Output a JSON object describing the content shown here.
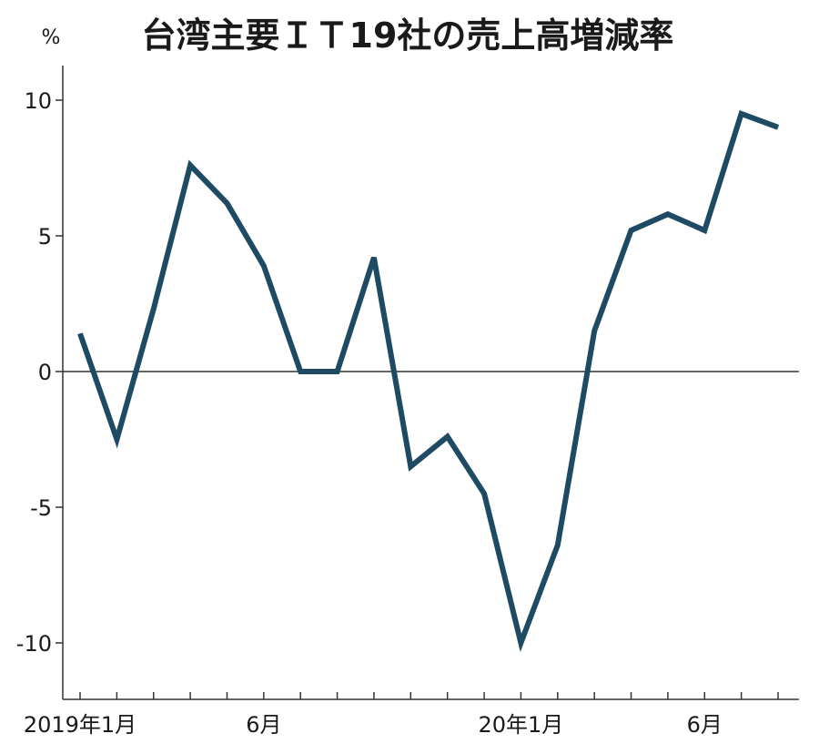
{
  "chart_data": {
    "type": "line",
    "title": "台湾主要ＩＴ19社の売上高増減率",
    "ylabel": "%",
    "xlabel": "",
    "ylim": [
      -12,
      11.2
    ],
    "yticks": [
      10,
      5,
      0,
      -5,
      -10
    ],
    "ytick_labels": [
      "10",
      "5",
      "0",
      "-5",
      "-10"
    ],
    "x": [
      "2019-01",
      "2019-02",
      "2019-03",
      "2019-04",
      "2019-05",
      "2019-06",
      "2019-07",
      "2019-08",
      "2019-09",
      "2019-10",
      "2019-11",
      "2019-12",
      "2020-01",
      "2020-02",
      "2020-03",
      "2020-04",
      "2020-05",
      "2020-06",
      "2020-07",
      "2020-08"
    ],
    "xtick_labels": [
      {
        "month_index": 0,
        "label": "2019年1月"
      },
      {
        "month_index": 5,
        "label": "6月"
      },
      {
        "month_index": 12,
        "label": "20年1月"
      },
      {
        "month_index": 17,
        "label": "6月"
      }
    ],
    "series": [
      {
        "name": "",
        "color": "#1e4a63",
        "values": [
          1.4,
          -2.5,
          2.3,
          7.6,
          6.2,
          3.9,
          0.0,
          0.0,
          4.2,
          -3.5,
          -2.4,
          -4.5,
          -10.0,
          -6.4,
          1.5,
          5.2,
          5.8,
          5.2,
          9.5,
          9.0
        ]
      }
    ],
    "zero_line": true,
    "grid": false,
    "legend": "none"
  }
}
